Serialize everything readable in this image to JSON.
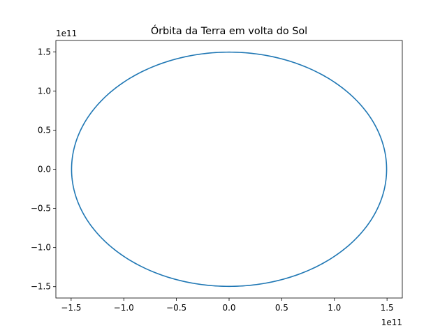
{
  "chart_data": {
    "type": "line",
    "title": "Órbita da Terra em volta do Sol",
    "xlabel": "",
    "ylabel": "",
    "x_offset_label": "1e11",
    "y_offset_label": "1e11",
    "scale_factor": 100000000000,
    "xlim": [
      -1.645,
      1.645
    ],
    "ylim": [
      -1.645,
      1.645
    ],
    "xticks": [
      -1.5,
      -1.0,
      -0.5,
      0.0,
      0.5,
      1.0,
      1.5
    ],
    "xtick_labels": [
      "−1.5",
      "−1.0",
      "−0.5",
      "0.0",
      "0.5",
      "1.0",
      "1.5"
    ],
    "yticks": [
      -1.5,
      -1.0,
      -0.5,
      0.0,
      0.5,
      1.0,
      1.5
    ],
    "ytick_labels": [
      "−1.5",
      "−1.0",
      "−0.5",
      "0.0",
      "0.5",
      "1.0",
      "1.5"
    ],
    "grid": false,
    "legend": "none",
    "series": [
      {
        "color": "#1f77b4",
        "shape": "circle",
        "center": [
          0.0,
          0.0
        ],
        "radius": 1.496
      }
    ]
  },
  "colors": {
    "line": "#1f77b4",
    "axes": "#000000",
    "background": "#ffffff"
  }
}
